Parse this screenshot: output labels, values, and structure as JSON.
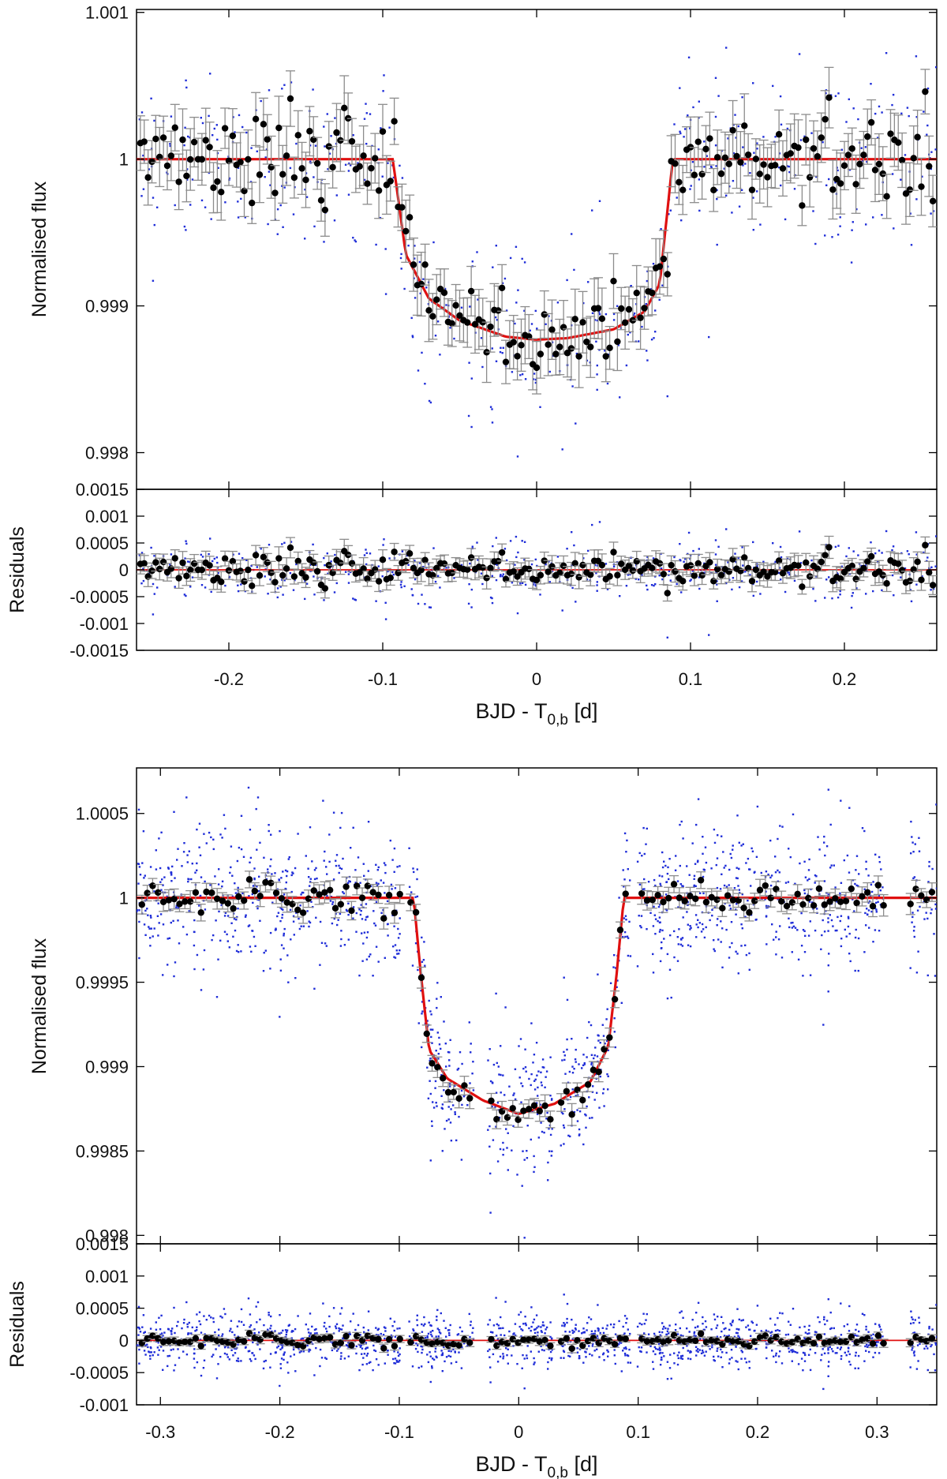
{
  "chart_data": [
    {
      "type": "scatter",
      "title": "",
      "panels": [
        {
          "role": "light-curve",
          "ylabel": "Normalised flux",
          "xlim": [
            -0.26,
            0.26
          ],
          "ylim": [
            0.99775,
            1.00102
          ],
          "yticks": [
            "0.998",
            "0.999",
            "1",
            "1.001"
          ],
          "yticks_values": [
            0.998,
            0.999,
            1.0,
            1.001
          ],
          "grid": false
        },
        {
          "role": "residuals",
          "ylabel": "Residuals",
          "xlim": [
            -0.26,
            0.26
          ],
          "ylim": [
            -0.0015,
            0.0015
          ],
          "yticks": [
            "0.0015",
            "0.001",
            "0.0005",
            "0",
            "-0.0005",
            "-0.001",
            "-0.0015"
          ],
          "yticks_values": [
            0.0015,
            0.001,
            0.0005,
            0,
            -0.0005,
            -0.001,
            -0.0015
          ],
          "grid": false
        }
      ],
      "xlabel": {
        "main": "BJD - T",
        "sub": "0,b",
        "unit": " [d]"
      },
      "xticks": [
        "-0.2",
        "-0.1",
        "0",
        "0.1",
        "0.2"
      ],
      "xticks_values": [
        -0.2,
        -0.1,
        0,
        0.1,
        0.2
      ],
      "model": {
        "name": "transit model",
        "color": "#e01010",
        "baseline": 1.0,
        "depth_center": 0.99877,
        "t_ingress": -0.0935,
        "t_egress": 0.0885,
        "points": [
          [
            -0.26,
            1.0
          ],
          [
            -0.0935,
            1.0
          ],
          [
            -0.085,
            0.99935
          ],
          [
            -0.07,
            0.99905
          ],
          [
            -0.05,
            0.9989
          ],
          [
            -0.02,
            0.99879
          ],
          [
            0.0,
            0.99877
          ],
          [
            0.02,
            0.99878
          ],
          [
            0.05,
            0.99884
          ],
          [
            0.07,
            0.99896
          ],
          [
            0.08,
            0.99915
          ],
          [
            0.0885,
            1.0
          ],
          [
            0.26,
            1.0
          ]
        ]
      },
      "series": [
        {
          "name": "unbinned",
          "color": "#1f2dd8",
          "marker": "dot",
          "scatter_sigma": 0.0003,
          "count": 520
        },
        {
          "name": "binned",
          "color": "#000000",
          "errbar_color": "#8c8c8c",
          "marker": "circle",
          "bin_width": 0.0025,
          "typical_error": 0.00017
        }
      ]
    },
    {
      "type": "scatter",
      "title": "",
      "panels": [
        {
          "role": "light-curve",
          "ylabel": "Normalised flux",
          "xlim": [
            -0.32,
            0.35
          ],
          "ylim": [
            0.99795,
            1.00077
          ],
          "yticks": [
            "0.998",
            "0.9985",
            "0.999",
            "0.9995",
            "1",
            "1.0005"
          ],
          "yticks_values": [
            0.998,
            0.9985,
            0.999,
            0.9995,
            1.0,
            1.0005
          ],
          "grid": false
        },
        {
          "role": "residuals",
          "ylabel": "Residuals",
          "xlim": [
            -0.32,
            0.35
          ],
          "ylim": [
            -0.001,
            0.0015
          ],
          "yticks": [
            "0.0015",
            "0.001",
            "0.0005",
            "0",
            "-0.0005",
            "-0.001"
          ],
          "yticks_values": [
            0.0015,
            0.001,
            0.0005,
            0,
            -0.0005,
            -0.001
          ],
          "grid": false
        }
      ],
      "xlabel": {
        "main": "BJD - T",
        "sub": "0,b",
        "unit": " [d]"
      },
      "xticks": [
        "-0.3",
        "-0.2",
        "-0.1",
        "0",
        "0.1",
        "0.2",
        "0.3"
      ],
      "xticks_values": [
        -0.3,
        -0.2,
        -0.1,
        0,
        0.1,
        0.2,
        0.3
      ],
      "model": {
        "name": "transit model",
        "color": "#e01010",
        "baseline": 1.0,
        "depth_center": 0.99872,
        "t_ingress": -0.088,
        "t_egress": 0.088,
        "points": [
          [
            -0.32,
            1.0
          ],
          [
            -0.088,
            1.0
          ],
          [
            -0.082,
            0.99955
          ],
          [
            -0.075,
            0.9991
          ],
          [
            -0.06,
            0.99893
          ],
          [
            -0.03,
            0.9988
          ],
          [
            0.0,
            0.99872
          ],
          [
            0.03,
            0.99878
          ],
          [
            0.06,
            0.99891
          ],
          [
            0.075,
            0.99912
          ],
          [
            0.082,
            0.99955
          ],
          [
            0.088,
            1.0
          ],
          [
            0.35,
            1.0
          ]
        ]
      },
      "series": [
        {
          "name": "unbinned",
          "color": "#1f2dd8",
          "marker": "dot",
          "scatter_sigma": 0.00022,
          "count": 1500,
          "gaps": [
            [
              -0.098,
              -0.092
            ],
            [
              -0.038,
              -0.026
            ],
            [
              0.028,
              0.035
            ],
            [
              0.094,
              0.099
            ],
            [
              0.306,
              0.327
            ]
          ]
        },
        {
          "name": "binned",
          "color": "#000000",
          "errbar_color": "#8c8c8c",
          "marker": "circle",
          "bin_width": 0.0045,
          "typical_error": 5e-05
        }
      ]
    }
  ]
}
